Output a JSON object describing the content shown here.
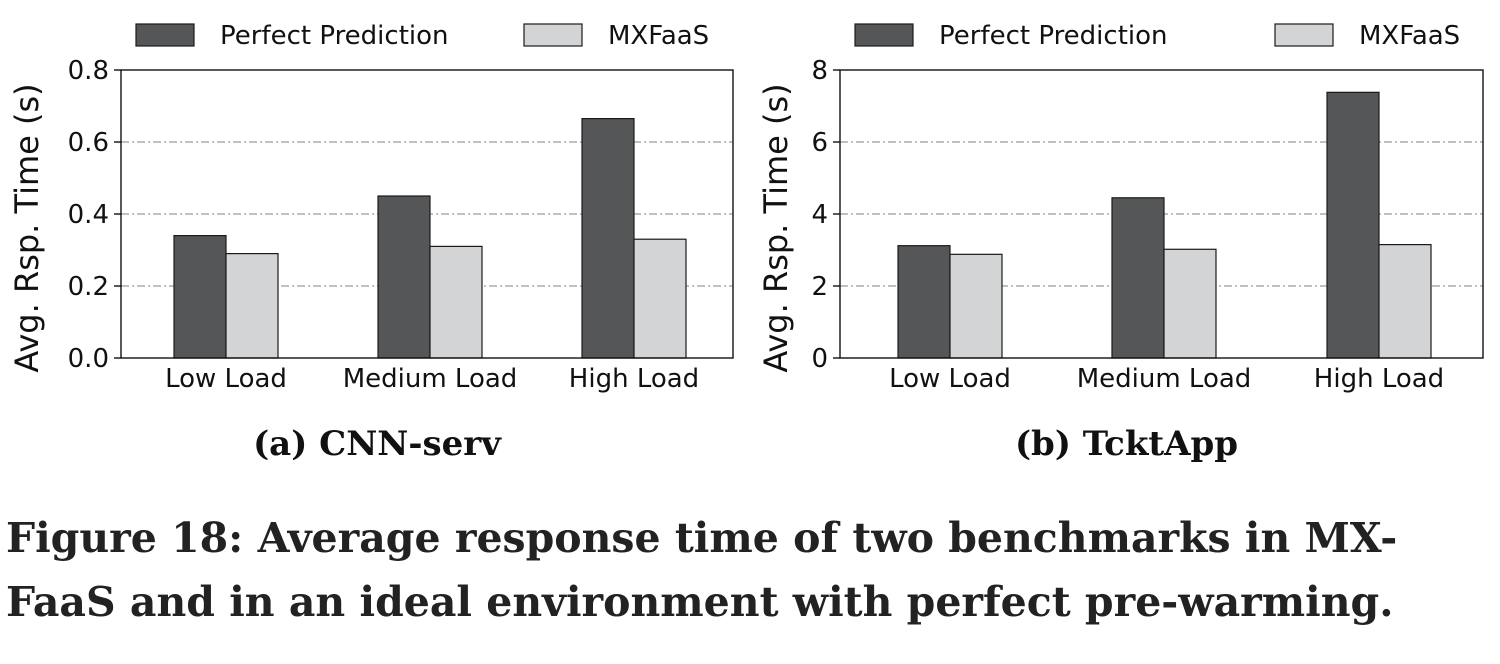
{
  "legend": {
    "perfect": "Perfect Prediction",
    "mxfaas": "MXFaaS"
  },
  "colors": {
    "perfect": "#555658",
    "mxfaas": "#d3d4d6",
    "grid": "#9a9a9a"
  },
  "chart_data": [
    {
      "type": "bar",
      "title": "(a) CNN-serv",
      "xlabel": "",
      "ylabel": "Avg. Rsp. Time (s)",
      "categories": [
        "Low Load",
        "Medium Load",
        "High Load"
      ],
      "series": [
        {
          "name": "Perfect Prediction",
          "values": [
            0.34,
            0.45,
            0.665
          ]
        },
        {
          "name": "MXFaaS",
          "values": [
            0.29,
            0.31,
            0.33
          ]
        }
      ],
      "ylim": [
        0,
        0.8
      ],
      "yticks": [
        "0.0",
        "0.2",
        "0.4",
        "0.6",
        "0.8"
      ],
      "grid": "horizontal dash-dot",
      "legend_position": "top"
    },
    {
      "type": "bar",
      "title": "(b) TcktApp",
      "xlabel": "",
      "ylabel": "Avg. Rsp. Time (s)",
      "categories": [
        "Low Load",
        "Medium Load",
        "High Load"
      ],
      "series": [
        {
          "name": "Perfect Prediction",
          "values": [
            3.12,
            4.45,
            7.38
          ]
        },
        {
          "name": "MXFaaS",
          "values": [
            2.88,
            3.02,
            3.15
          ]
        }
      ],
      "ylim": [
        0,
        8
      ],
      "yticks": [
        "0",
        "2",
        "4",
        "6",
        "8"
      ],
      "grid": "horizontal dash-dot",
      "legend_position": "top"
    }
  ],
  "caption": "Figure 18: Average response time of two benchmarks in MX-FaaS and in an ideal environment with perfect pre-warming."
}
